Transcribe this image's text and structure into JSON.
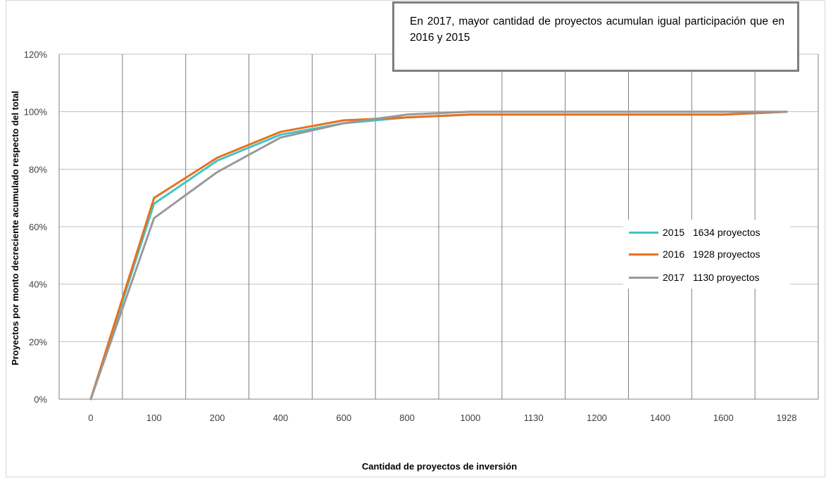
{
  "chart_data": {
    "type": "line",
    "categories": [
      "0",
      "100",
      "200",
      "400",
      "600",
      "800",
      "1000",
      "1130",
      "1200",
      "1400",
      "1600",
      "1928"
    ],
    "ylabel": "Proyectos por monto decreciente acumulado respecto del total",
    "xlabel": "Cantidad de proyectos de inversión",
    "y_ticks": [
      "0%",
      "20%",
      "40%",
      "60%",
      "80%",
      "100%",
      "120%"
    ],
    "ylim": [
      0,
      1.2
    ],
    "grid": true,
    "legend_position": "right",
    "annotation": "En 2017, mayor cantidad de proyectos acumulan  igual participación que en 2016 y 2015",
    "series": [
      {
        "name": "2015   1634 proyectos",
        "color": "#3ec6c6",
        "values": [
          0,
          0.68,
          0.83,
          0.92,
          0.96,
          0.98,
          0.99,
          0.99,
          0.99,
          0.99,
          0.99,
          1.0
        ]
      },
      {
        "name": "2016   1928 proyectos",
        "color": "#e8701e",
        "values": [
          0,
          0.7,
          0.84,
          0.93,
          0.97,
          0.98,
          0.99,
          0.99,
          0.99,
          0.99,
          0.99,
          1.0
        ]
      },
      {
        "name": "2017   1130 proyectos",
        "color": "#999999",
        "values": [
          0,
          0.63,
          0.79,
          0.91,
          0.96,
          0.99,
          1.0,
          1.0,
          1.0,
          1.0,
          1.0,
          1.0
        ]
      }
    ]
  }
}
